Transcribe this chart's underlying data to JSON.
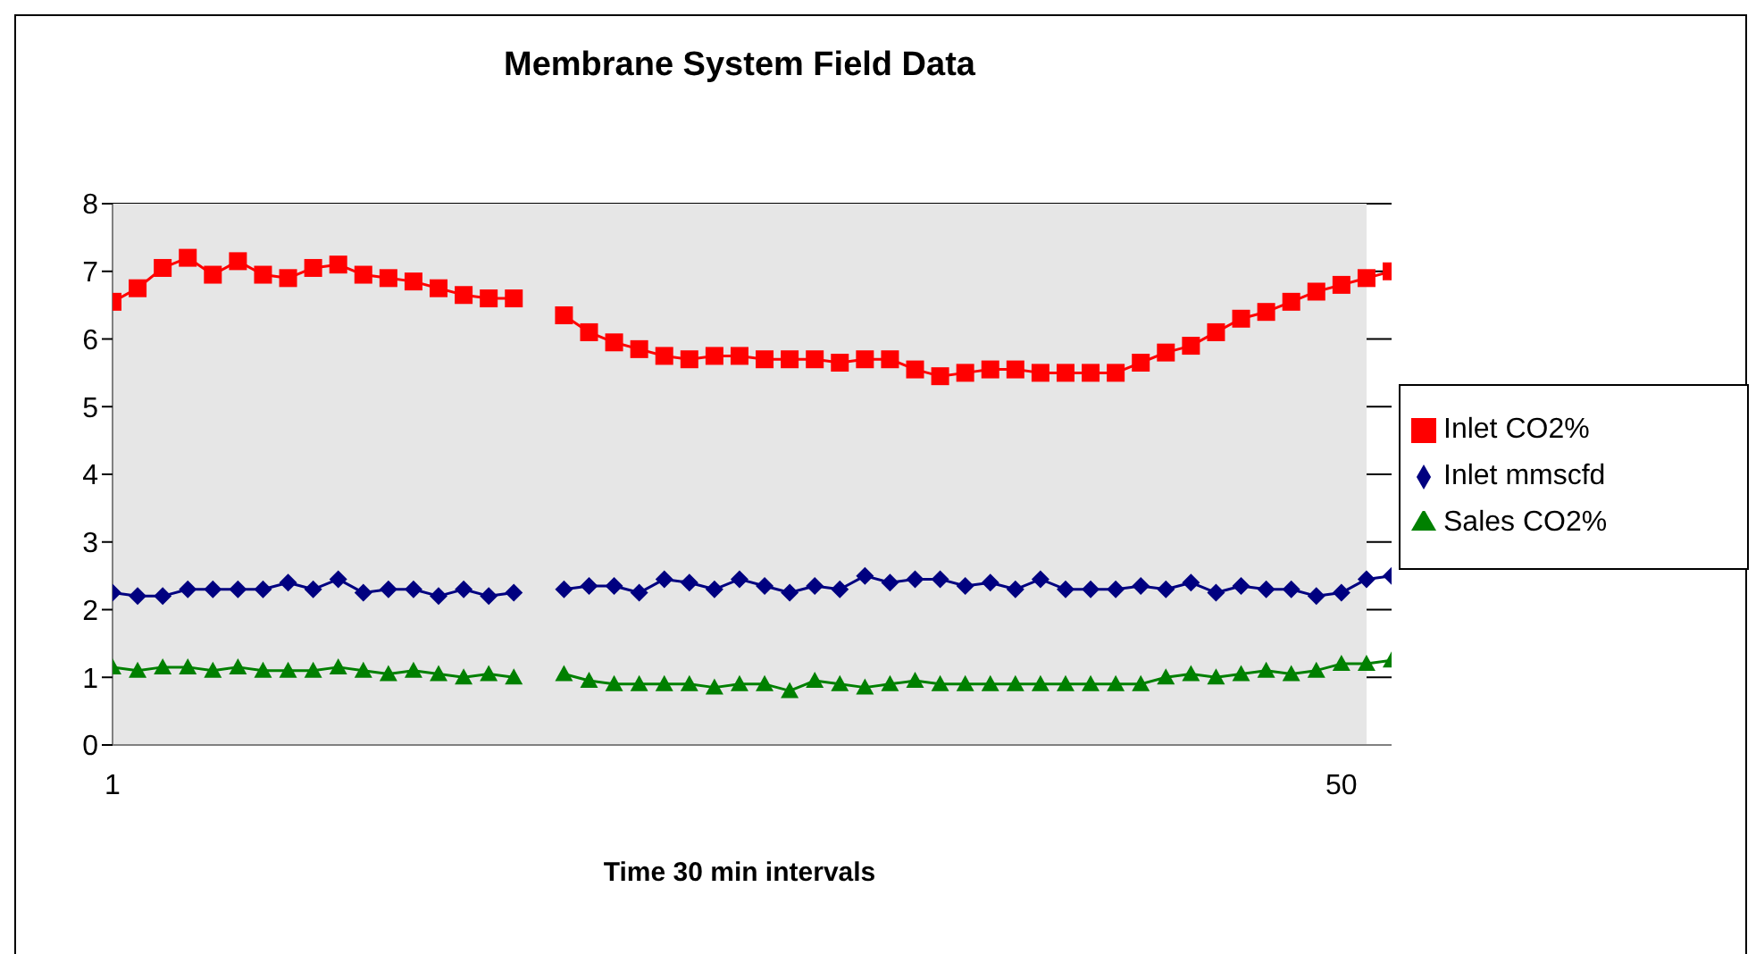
{
  "chart_data": {
    "type": "line",
    "title": "Membrane System Field Data",
    "xlabel": "Time 30 min intervals",
    "x": [
      1,
      2,
      3,
      4,
      5,
      6,
      7,
      8,
      9,
      10,
      11,
      12,
      13,
      14,
      15,
      16,
      17,
      18,
      19,
      20,
      21,
      22,
      23,
      24,
      25,
      26,
      27,
      28,
      29,
      30,
      31,
      32,
      33,
      34,
      35,
      36,
      37,
      38,
      39,
      40,
      41,
      42,
      43,
      44,
      45,
      46,
      47,
      48,
      49,
      50,
      51,
      52
    ],
    "xlim": [
      1,
      52
    ],
    "xticks": [
      1,
      50
    ],
    "ylim": [
      0,
      8
    ],
    "yticks": [
      0,
      1,
      2,
      3,
      4,
      5,
      6,
      7,
      8
    ],
    "grid": "y",
    "legend": "right",
    "line_style": "solid",
    "series": [
      {
        "name": "Inlet mmscfd",
        "color": "#000080",
        "marker": "diamond",
        "values": [
          2.25,
          2.2,
          2.2,
          2.3,
          2.3,
          2.3,
          2.3,
          2.4,
          2.3,
          2.45,
          2.25,
          2.3,
          2.3,
          2.2,
          2.3,
          2.2,
          2.25,
          null,
          2.3,
          2.35,
          2.35,
          2.25,
          2.45,
          2.4,
          2.3,
          2.45,
          2.35,
          2.25,
          2.35,
          2.3,
          2.5,
          2.4,
          2.45,
          2.45,
          2.35,
          2.4,
          2.3,
          2.45,
          2.3,
          2.3,
          2.3,
          2.35,
          2.3,
          2.4,
          2.25,
          2.35,
          2.3,
          2.3,
          2.2,
          2.25,
          2.45,
          2.5
        ]
      },
      {
        "name": "Inlet CO2%",
        "color": "#ff0000",
        "marker": "square",
        "values": [
          6.55,
          6.75,
          7.05,
          7.2,
          6.95,
          7.15,
          6.95,
          6.9,
          7.05,
          7.1,
          6.95,
          6.9,
          6.85,
          6.75,
          6.65,
          6.6,
          6.6,
          null,
          6.35,
          6.1,
          5.95,
          5.85,
          5.75,
          5.7,
          5.75,
          5.75,
          5.7,
          5.7,
          5.7,
          5.65,
          5.7,
          5.7,
          5.55,
          5.45,
          5.5,
          5.55,
          5.55,
          5.5,
          5.5,
          5.5,
          5.5,
          5.65,
          5.8,
          5.9,
          6.1,
          6.3,
          6.4,
          6.55,
          6.7,
          6.8,
          6.9,
          7.0
        ]
      },
      {
        "name": "Sales CO2%",
        "color": "#008000",
        "marker": "triangle",
        "values": [
          1.15,
          1.1,
          1.15,
          1.15,
          1.1,
          1.15,
          1.1,
          1.1,
          1.1,
          1.15,
          1.1,
          1.05,
          1.1,
          1.05,
          1.0,
          1.05,
          1.0,
          null,
          1.05,
          0.95,
          0.9,
          0.9,
          0.9,
          0.9,
          0.85,
          0.9,
          0.9,
          0.8,
          0.95,
          0.9,
          0.85,
          0.9,
          0.95,
          0.9,
          0.9,
          0.9,
          0.9,
          0.9,
          0.9,
          0.9,
          0.9,
          0.9,
          1.0,
          1.05,
          1.0,
          1.05,
          1.1,
          1.05,
          1.1,
          1.2,
          1.2,
          1.25
        ]
      }
    ]
  }
}
